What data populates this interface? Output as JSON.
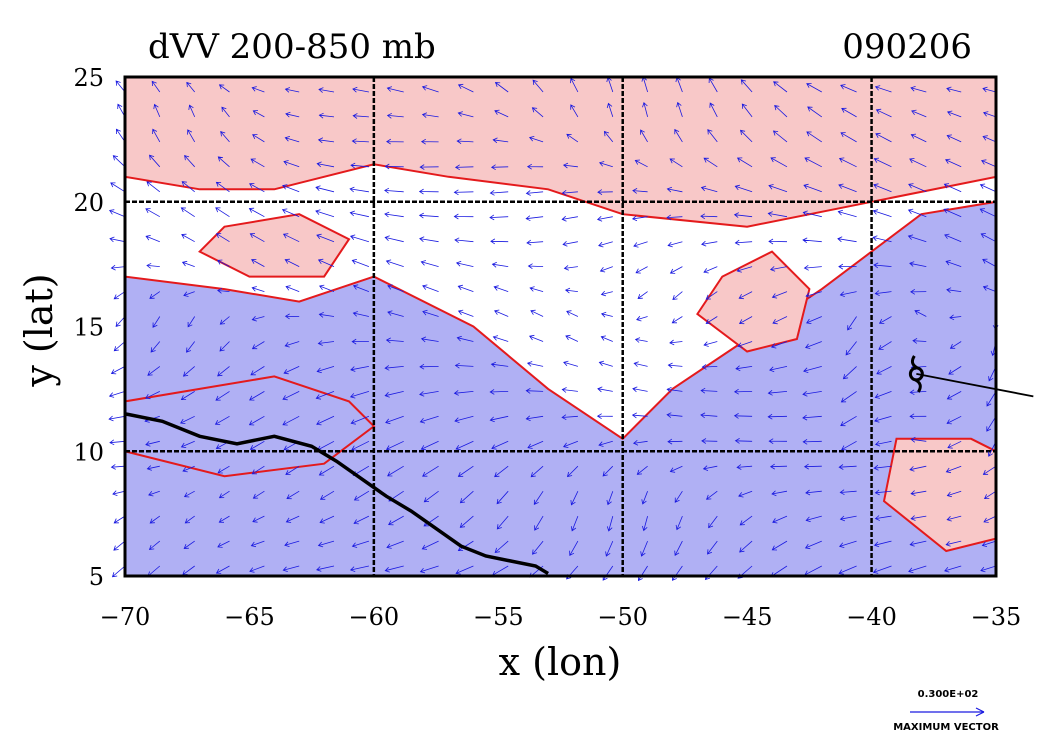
{
  "chart_data": {
    "type": "map",
    "title": "dVV 200-850 mb",
    "date_label": "090206",
    "xlabel": "x (lon)",
    "ylabel": "y (lat)",
    "xlim": [
      -70,
      -35
    ],
    "ylim": [
      5,
      25
    ],
    "xticks": [
      -70,
      -65,
      -60,
      -55,
      -50,
      -45,
      -40,
      -35
    ],
    "yticks": [
      5,
      10,
      15,
      20,
      25
    ],
    "xtick_labels": [
      "−70",
      "−65",
      "−60",
      "−55",
      "−50",
      "−45",
      "−40",
      "−35"
    ],
    "ytick_labels": [
      "5",
      "10",
      "15",
      "20",
      "25"
    ],
    "grid": true,
    "grid_lon": [
      -60,
      -50,
      -40
    ],
    "grid_lat": [
      10,
      20
    ],
    "colors": {
      "negative_fill": "#b0b0f4",
      "positive_fill": "#f8c8c8",
      "contour": "#e41a1c",
      "vectors": "#1a1ae0",
      "coast": "#000000"
    },
    "negative_regions": [
      {
        "lon": [
          -70,
          -60,
          -57,
          -52,
          -50,
          -47,
          -45,
          -42,
          -40,
          -37,
          -35,
          -35,
          -38,
          -40,
          -42,
          -45,
          -48,
          -50,
          -53,
          -56,
          -60,
          -63,
          -66,
          -70
        ],
        "lat": [
          5,
          5,
          5,
          5,
          5,
          5,
          5,
          5,
          5,
          5,
          5,
          20,
          19.5,
          18,
          16.5,
          14.5,
          12.5,
          10.5,
          12.5,
          15,
          17,
          16,
          16.5,
          17
        ]
      },
      {
        "lon": [
          -70,
          -67,
          -64,
          -61,
          -60,
          -62,
          -66,
          -70
        ],
        "lat": [
          12,
          12.5,
          13,
          12,
          11,
          9.5,
          9,
          10
        ]
      }
    ],
    "positive_regions": [
      {
        "lon": [
          -70,
          -65,
          -60,
          -55,
          -50,
          -45,
          -40,
          -35,
          -35,
          -40,
          -45,
          -50,
          -53,
          -57,
          -60,
          -64,
          -67,
          -70
        ],
        "lat": [
          25,
          25,
          25,
          25,
          25,
          25,
          25,
          25,
          21,
          20,
          19,
          19.5,
          20.5,
          21,
          21.5,
          20.5,
          20.5,
          21
        ]
      },
      {
        "lon": [
          -46,
          -44,
          -42.5,
          -43,
          -45,
          -47
        ],
        "lat": [
          17,
          18,
          16.5,
          14.5,
          14,
          15.5
        ]
      },
      {
        "lon": [
          -39,
          -36,
          -35,
          -35,
          -37,
          -39.5
        ],
        "lat": [
          10.5,
          10.5,
          10,
          6.5,
          6,
          8
        ]
      },
      {
        "lon": [
          -66,
          -63,
          -61,
          -62,
          -65,
          -67
        ],
        "lat": [
          19,
          19.5,
          18.5,
          17,
          17,
          18
        ]
      }
    ],
    "coastline": {
      "lon": [
        -70,
        -68.5,
        -67,
        -65.5,
        -64,
        -62.5,
        -61.5,
        -60.5,
        -59.5,
        -58.5,
        -57.5,
        -56.5,
        -55.5,
        -54.5,
        -53.5,
        -53
      ],
      "lat": [
        11.5,
        11.2,
        10.6,
        10.3,
        10.6,
        10.2,
        9.6,
        8.9,
        8.2,
        7.6,
        6.9,
        6.2,
        5.8,
        5.6,
        5.4,
        5.1
      ]
    },
    "wind_field": {
      "lon_start": -70,
      "lon_end": -35,
      "lon_step": 1.4,
      "lat_start": 5.4,
      "lat_end": 24.8,
      "lat_step": 1.0
    },
    "storm_marker": {
      "lon": -38.2,
      "lat": 13.1,
      "symbol": "tropical-storm"
    },
    "storm_track": {
      "lon": [
        -38.2,
        -33.5
      ],
      "lat": [
        13.1,
        12.2
      ]
    },
    "reference_vector": {
      "value_label": "0.300E+02",
      "caption": "MAXIMUM VECTOR"
    }
  }
}
